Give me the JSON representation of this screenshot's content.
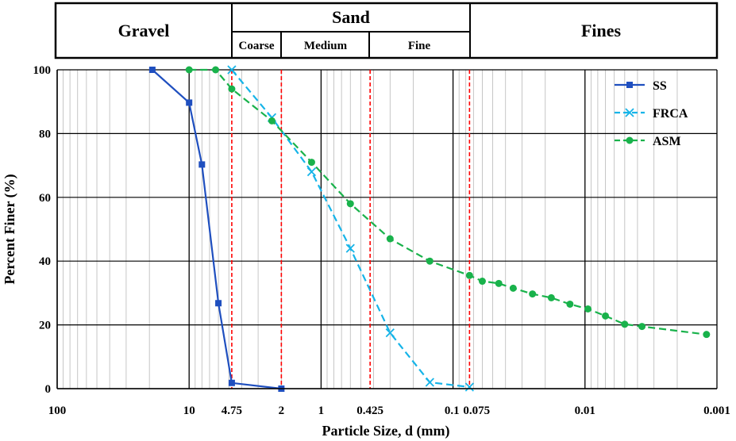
{
  "header": {
    "gravel": "Gravel",
    "sand": "Sand",
    "coarse": "Coarse",
    "medium": "Medium",
    "fine": "Fine",
    "fines": "Fines"
  },
  "colors": {
    "ss": "#1f4fbf",
    "frca": "#16b4e8",
    "asm": "#19b24b",
    "boundary": "#ff0000"
  },
  "chart_data": {
    "type": "line",
    "xlabel": "Particle Size, d (mm)",
    "ylabel": "Percent Finer (%)",
    "x_scale": "log",
    "x_reversed": true,
    "xlim": [
      100,
      0.001
    ],
    "ylim": [
      0,
      100
    ],
    "grid": true,
    "legend_position": "top-right",
    "x_ticks": [
      {
        "value": 100,
        "label": "100"
      },
      {
        "value": 10,
        "label": "10"
      },
      {
        "value": 4.75,
        "label": "4.75"
      },
      {
        "value": 2,
        "label": "2"
      },
      {
        "value": 1,
        "label": "1"
      },
      {
        "value": 0.425,
        "label": "0.425"
      },
      {
        "value": 0.1,
        "label": "0.1"
      },
      {
        "value": 0.075,
        "label": "0.075"
      },
      {
        "value": 0.01,
        "label": "0.01"
      },
      {
        "value": 0.001,
        "label": "0.001"
      }
    ],
    "y_ticks": [
      0,
      20,
      40,
      60,
      80,
      100
    ],
    "boundaries": [
      4.75,
      2,
      0.425,
      0.075
    ],
    "series": [
      {
        "name": "SS",
        "marker": "square",
        "line": "solid",
        "x": [
          19,
          10,
          8,
          6,
          4.75,
          2
        ],
        "y": [
          100,
          89.7,
          70.3,
          26.8,
          1.8,
          0
        ]
      },
      {
        "name": "FRCA",
        "marker": "x",
        "line": "dashed",
        "x": [
          4.75,
          2.36,
          1.18,
          0.6,
          0.3,
          0.15,
          0.075
        ],
        "y": [
          100,
          85,
          68,
          44,
          17.5,
          2,
          0.5
        ]
      },
      {
        "name": "ASM",
        "marker": "circle",
        "line": "dashed",
        "x": [
          10,
          6.3,
          4.75,
          2.36,
          1.18,
          0.6,
          0.3,
          0.15,
          0.075,
          0.06,
          0.045,
          0.035,
          0.025,
          0.018,
          0.013,
          0.0095,
          0.007,
          0.005,
          0.0037,
          0.0012
        ],
        "y": [
          100,
          100,
          94,
          84,
          71,
          58,
          47,
          40,
          35.5,
          33.7,
          33,
          31.5,
          29.7,
          28.5,
          26.5,
          25,
          22.8,
          20.2,
          19.5,
          17
        ]
      }
    ]
  }
}
